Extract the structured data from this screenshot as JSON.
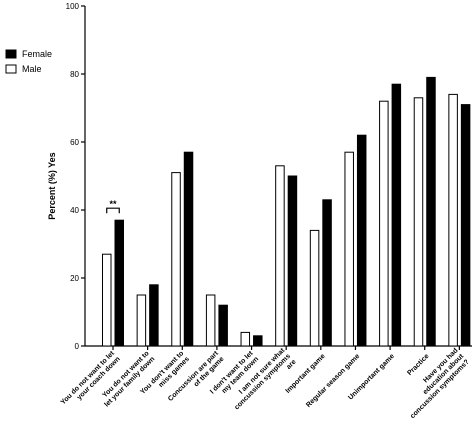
{
  "chart_data": {
    "type": "bar",
    "ylabel": "Percent (%) Yes",
    "ylim": [
      0,
      100
    ],
    "yticks": [
      0,
      20,
      40,
      60,
      80,
      100
    ],
    "grid": false,
    "legend_position": "top-left",
    "categories": [
      [
        "You do not want to let",
        "your coach down"
      ],
      [
        "You do not want to",
        "let your family down"
      ],
      [
        "You don't want to",
        "miss games"
      ],
      [
        "Concussion are part",
        "of the game"
      ],
      [
        "I don't want to let",
        "my team down"
      ],
      [
        "I am not sure what",
        "concussion symptoms",
        "are"
      ],
      [
        "Important game"
      ],
      [
        "Regular season game"
      ],
      [
        "Unimportant game"
      ],
      [
        "Practice"
      ],
      [
        "Have you had",
        "education about",
        "concussion symptoms?"
      ]
    ],
    "series": [
      {
        "name": "Male",
        "color": "#ffffff",
        "values": [
          27,
          15,
          51,
          15,
          4,
          53,
          34,
          57,
          72,
          73,
          74
        ]
      },
      {
        "name": "Female",
        "color": "#000000",
        "values": [
          37,
          18,
          57,
          12,
          3,
          50,
          43,
          62,
          77,
          79,
          71
        ]
      }
    ],
    "annotations": [
      {
        "text": "**",
        "category_index": 0
      }
    ]
  }
}
